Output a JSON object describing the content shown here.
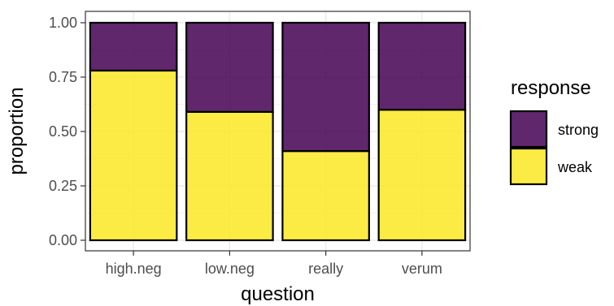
{
  "chart_data": {
    "type": "bar",
    "stacked": true,
    "normalized": true,
    "categories": [
      "high.neg",
      "low.neg",
      "really",
      "verum"
    ],
    "series": [
      {
        "name": "weak",
        "values": [
          0.78,
          0.59,
          0.41,
          0.6
        ],
        "color": "#FDE725"
      },
      {
        "name": "strong",
        "values": [
          0.22,
          0.41,
          0.59,
          0.4
        ],
        "color": "#440154"
      }
    ],
    "xlabel": "question",
    "ylabel": "proportion",
    "ylim": [
      0,
      1
    ],
    "yticks": [
      "0.00",
      "0.25",
      "0.50",
      "0.75",
      "1.00"
    ],
    "grid": true,
    "legend": {
      "title": "response",
      "placement": "right",
      "entries": [
        "strong",
        "weak"
      ]
    }
  }
}
